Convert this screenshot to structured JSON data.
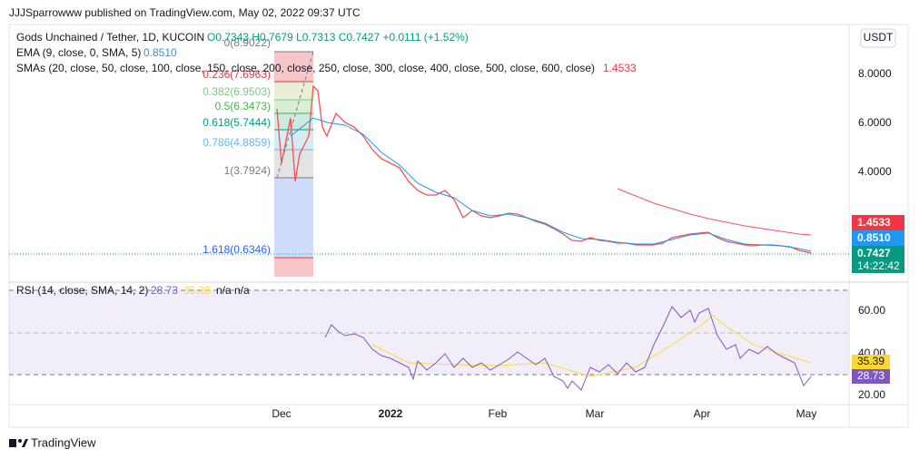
{
  "header": {
    "publisher": "JJJSparrowww published on TradingView.com, May 02, 2022 09:37 UTC"
  },
  "legend": {
    "symbol": "Gods Unchained / Tether, 1D, KUCOIN",
    "ohlc": "O0.7343 H0.7679 L0.7313 C0.7427 +0.0111 (+1.52%)",
    "ema": "EMA (9, close, 0, SMA, 5)",
    "ema_value": "0.8510",
    "sma": "SMAs (20, close, 50, close, 100, close, 150, close, 200, close, 250, close, 300, close, 400, close, 500, close, 600, close)",
    "sma_value": "1.4533"
  },
  "fib": [
    "0(8.9022)",
    "0.236(7.6963)",
    "0.382(6.9503)",
    "0.5(6.3473)",
    "0.618(5.7444)",
    "0.786(4.8859)",
    "1(3.7924)",
    "1.618(0.6346)"
  ],
  "price_axis": {
    "currency": "USDT",
    "ticks": [
      "8.0000",
      "6.0000",
      "4.0000"
    ],
    "sma_tag": "1.4533",
    "ema_tag": "0.8510",
    "close_tag": "0.7427",
    "countdown": "14:22:42"
  },
  "rsi": {
    "legend": "RSI (14, close, SMA, 14, 2)",
    "value": "28.73",
    "sma_value": "35.39",
    "na": "n/a n/a",
    "ticks": [
      "60.00",
      "40.00",
      "20.00"
    ],
    "tag": "28.73",
    "sma_tag": "35.39"
  },
  "time_axis": [
    "Dec",
    "2022",
    "Feb",
    "Mar",
    "Apr",
    "May"
  ],
  "footer": {
    "brand": "TradingView"
  }
}
